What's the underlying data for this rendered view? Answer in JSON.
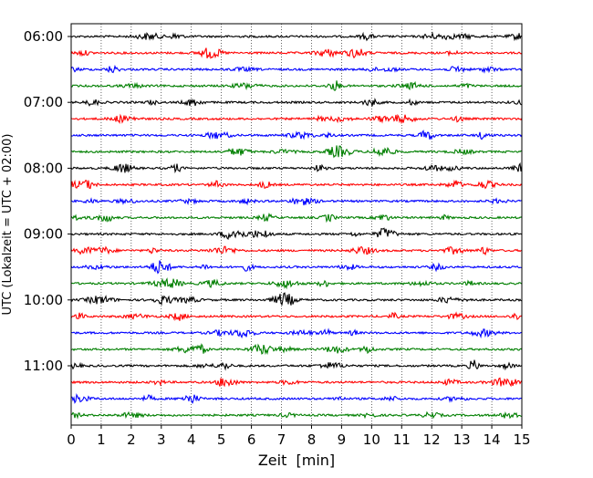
{
  "chart_data": {
    "type": "line",
    "chart_kind": "seismic helicorder",
    "xlabel": "Zeit  [min]",
    "ylabel": "UTC (Lokalzeit = UTC + 02:00)",
    "xlim": [
      0,
      15
    ],
    "x_ticks": [
      0,
      1,
      2,
      3,
      4,
      5,
      6,
      7,
      8,
      9,
      10,
      11,
      12,
      13,
      14,
      15
    ],
    "x_tick_labels": [
      "0",
      "1",
      "2",
      "3",
      "4",
      "5",
      "6",
      "7",
      "8",
      "9",
      "10",
      "11",
      "12",
      "13",
      "14",
      "15"
    ],
    "y_tick_labels": [
      "06:00",
      "07:00",
      "08:00",
      "09:00",
      "10:00",
      "11:00"
    ],
    "y_tick_trace_index": [
      0,
      4,
      8,
      12,
      16,
      20
    ],
    "trace_count": 24,
    "trace_colors": [
      "#000000",
      "#ff0000",
      "#0000ff",
      "#007f00"
    ],
    "trace_interval_min": 15,
    "vertical_grid": "dotted at each minute"
  }
}
